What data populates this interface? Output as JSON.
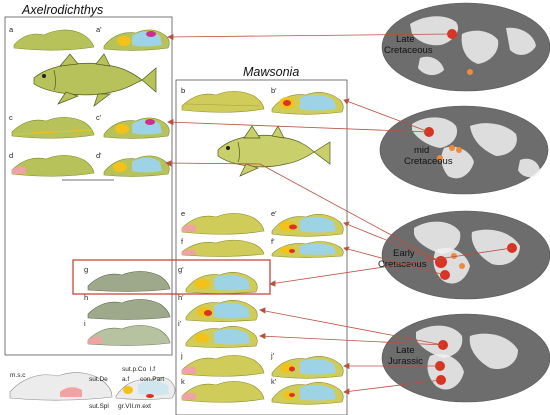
{
  "titles": {
    "left": "Axelrodichthys",
    "middle": "Mawsonia"
  },
  "panels": {
    "a": "a",
    "a2": "a'",
    "b": "b",
    "b2": "b'",
    "c": "c",
    "c2": "c'",
    "d": "d",
    "d2": "d'",
    "e": "e",
    "e2": "e'",
    "f": "f",
    "f2": "f'",
    "g": "g",
    "g2": "g'",
    "h": "h",
    "h2": "h'",
    "i": "i",
    "i2": "i'",
    "j": "j",
    "j2": "j'",
    "k": "k",
    "k2": "k'"
  },
  "eras": {
    "late_cretaceous": [
      "Late",
      "Cretaceous"
    ],
    "mid_cretaceous": [
      "mid",
      "Cretaceous"
    ],
    "early_cretaceous": [
      "Early",
      "Cretaceous"
    ],
    "late_jurassic": [
      "Late",
      "Jurassic"
    ]
  },
  "anatomy": {
    "msc": "m.s.c",
    "sut_de": "sut.De",
    "sut_spl": "sut.Spl",
    "sut_pco": "sut.p.Co",
    "af": "a.f",
    "lf": "l.f",
    "con_part": "con.Part",
    "gr": "gr.VII.m.ext"
  },
  "colors": {
    "bone_green": "#b7c35a",
    "bone_outline": "#7f8a2c",
    "light_blue": "#9ed3e6",
    "yellow": "#f2c21a",
    "red": "#d93324",
    "magenta": "#cc2f8f",
    "pink": "#f0a3a3",
    "dark_grey": "#555555",
    "globe_grey": "#6d6d6d",
    "land_white": "#f1f1f1",
    "connector": "#b85040",
    "highlight_box": "#c0392b"
  }
}
